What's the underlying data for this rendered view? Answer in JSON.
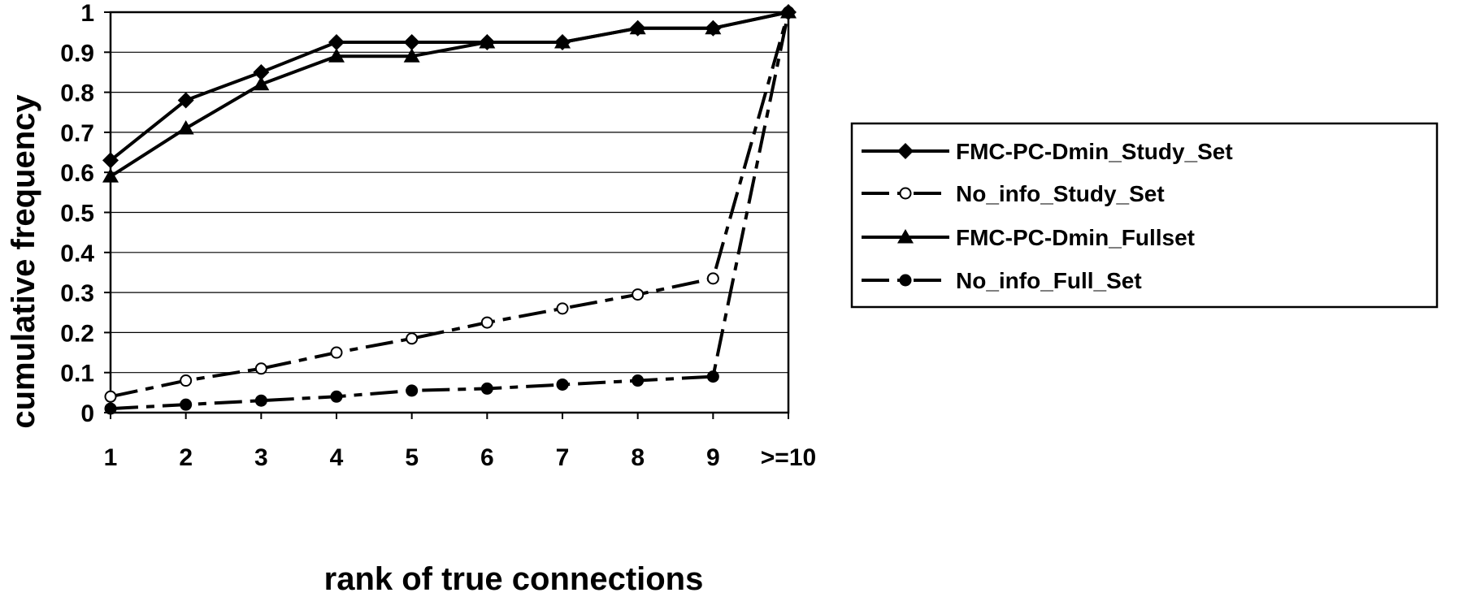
{
  "chart_data": {
    "type": "line",
    "title": "",
    "xlabel": "rank of true connections",
    "ylabel": "cumulative frequency",
    "categories": [
      "1",
      "2",
      "3",
      "4",
      "5",
      "6",
      "7",
      "8",
      "9",
      ">=10"
    ],
    "ylim": [
      0,
      1
    ],
    "yticks": [
      "0",
      "0.1",
      "0.2",
      "0.3",
      "0.4",
      "0.5",
      "0.6",
      "0.7",
      "0.8",
      "0.9",
      "1"
    ],
    "grid": true,
    "legend_position": "right",
    "series": [
      {
        "name": "FMC-PC-Dmin_Study_Set",
        "values": [
          0.63,
          0.78,
          0.85,
          0.925,
          0.925,
          0.925,
          0.925,
          0.96,
          0.96,
          1.0
        ],
        "marker": "diamond",
        "line_style": "solid",
        "color": "#000000"
      },
      {
        "name": "No_info_Study_Set",
        "values": [
          0.04,
          0.08,
          0.11,
          0.15,
          0.185,
          0.225,
          0.26,
          0.295,
          0.335,
          1.0
        ],
        "marker": "open-circle",
        "line_style": "dash-dot",
        "color": "#000000"
      },
      {
        "name": "FMC-PC-Dmin_Fullset",
        "values": [
          0.59,
          0.71,
          0.82,
          0.89,
          0.89,
          0.925,
          0.925,
          0.96,
          0.96,
          1.0
        ],
        "marker": "triangle",
        "line_style": "solid",
        "color": "#000000"
      },
      {
        "name": "No_info_Full_Set",
        "values": [
          0.01,
          0.02,
          0.03,
          0.04,
          0.055,
          0.06,
          0.07,
          0.08,
          0.09,
          1.0
        ],
        "marker": "filled-circle",
        "line_style": "dash-dot",
        "color": "#000000"
      }
    ]
  }
}
